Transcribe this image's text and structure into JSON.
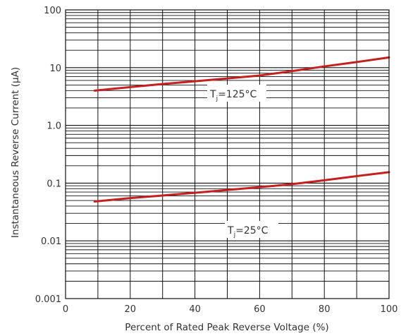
{
  "chart_data": {
    "type": "line",
    "title": "",
    "xlabel": "Percent of Rated Peak Reverse Voltage (%)",
    "ylabel": "Instantaneous Reverse Current (µA)",
    "x_scale": "linear",
    "y_scale": "log",
    "xlim": [
      0,
      100
    ],
    "ylim": [
      0.001,
      100
    ],
    "x_ticks": [
      0,
      20,
      40,
      60,
      80,
      100
    ],
    "x_tick_labels": [
      "0",
      "20",
      "40",
      "60",
      "80",
      "100"
    ],
    "y_ticks": [
      0.001,
      0.01,
      0.1,
      1,
      10,
      100
    ],
    "y_tick_labels": [
      "0.001",
      "0.01",
      "0.1",
      "1.0",
      "10",
      "100"
    ],
    "grid": true,
    "line_color": "#c42020",
    "series": [
      {
        "label_main": "T",
        "label_sub": "j",
        "label_tail": "=125°C",
        "x": [
          9,
          20,
          30,
          40,
          50,
          60,
          70,
          80,
          90,
          100
        ],
        "y": [
          4.0,
          4.6,
          5.2,
          5.8,
          6.5,
          7.3,
          8.7,
          10.5,
          12.5,
          15.0
        ]
      },
      {
        "label_main": "T",
        "label_sub": "j",
        "label_tail": "=25°C",
        "x": [
          9,
          20,
          30,
          40,
          50,
          60,
          70,
          80,
          90,
          100
        ],
        "y": [
          0.048,
          0.055,
          0.061,
          0.068,
          0.076,
          0.085,
          0.096,
          0.112,
          0.132,
          0.155
        ]
      }
    ]
  }
}
